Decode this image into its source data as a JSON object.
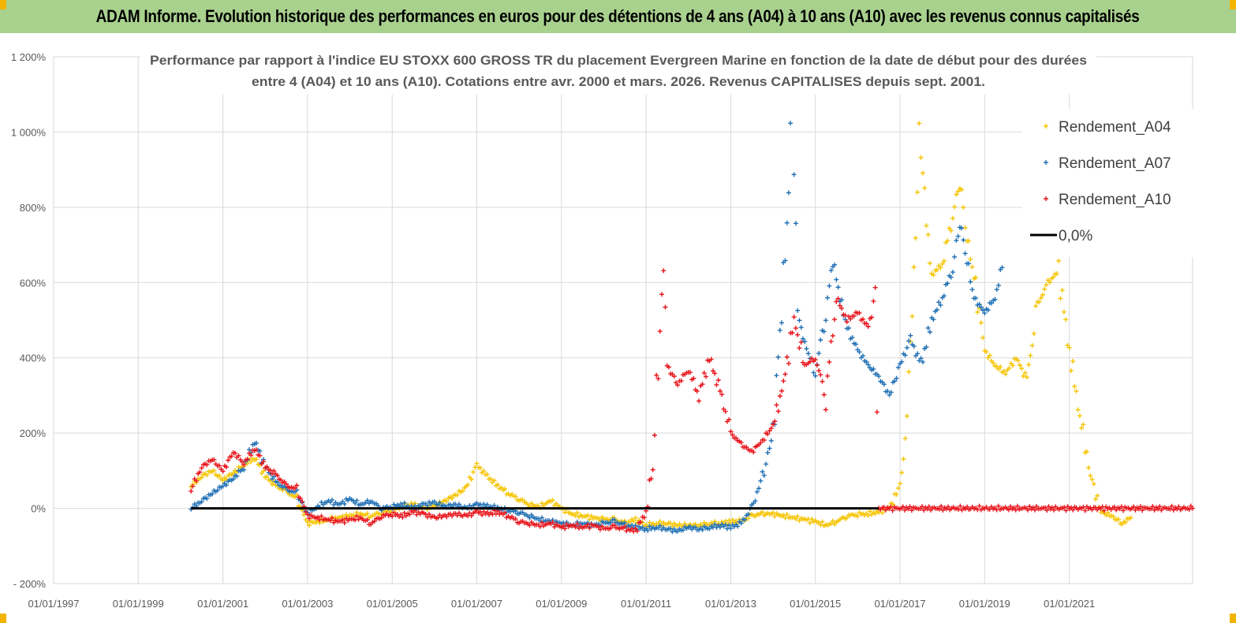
{
  "banner": {
    "title": "ADAM Informe. Evolution historique des performances en euros pour des détentions de 4 ans (A04) à 10 ans (A10) avec les revenus connus capitalisés"
  },
  "colors": {
    "banner_bg": "#a9d18e",
    "A04": "#f5c400",
    "A07": "#1f6fb4",
    "A10": "#e8131a",
    "zero": "#000000",
    "grid": "#d9d9d9"
  },
  "chart_data": {
    "type": "scatter",
    "title_line1": "Performance par rapport à l'indice EU STOXX 600 GROSS TR  du placement Evergreen Marine  en fonction de la date de début pour des durées",
    "title_line2": "entre 4 (A04) et 10 ans (A10). Cotations entre avr. 2000 et mars. 2026. Revenus CAPITALISES depuis sept. 2001.",
    "xlabel": "",
    "ylabel": "",
    "x_range": [
      "1997-01-01",
      "2023-12-01"
    ],
    "x_ticks": [
      "01/01/1997",
      "01/01/1999",
      "01/01/2001",
      "01/01/2003",
      "01/01/2005",
      "01/01/2007",
      "01/01/2009",
      "01/01/2011",
      "01/01/2013",
      "01/01/2015",
      "01/01/2017",
      "01/01/2019",
      "01/01/2021"
    ],
    "y_ticks": [
      -200,
      0,
      200,
      400,
      600,
      800,
      1000,
      1200
    ],
    "y_tick_labels": [
      "- 200%",
      "0%",
      "200%",
      "400%",
      "600%",
      "800%",
      "1 000%",
      "1 200%"
    ],
    "ylim": [
      -200,
      1200
    ],
    "grid": true,
    "legend_position": "top-right",
    "series": [
      {
        "name": "Rendement_A04",
        "key": "A04",
        "marker": "+",
        "points": [
          [
            "2000-04-01",
            60
          ],
          [
            "2000-07-01",
            85
          ],
          [
            "2000-10-01",
            100
          ],
          [
            "2001-01-01",
            75
          ],
          [
            "2001-04-01",
            95
          ],
          [
            "2001-07-01",
            115
          ],
          [
            "2001-10-01",
            135
          ],
          [
            "2002-01-01",
            85
          ],
          [
            "2002-04-01",
            60
          ],
          [
            "2002-07-01",
            45
          ],
          [
            "2002-10-01",
            25
          ],
          [
            "2003-01-01",
            -40
          ],
          [
            "2003-04-01",
            -35
          ],
          [
            "2003-07-01",
            -30
          ],
          [
            "2003-10-01",
            -25
          ],
          [
            "2004-01-01",
            -20
          ],
          [
            "2004-04-01",
            -15
          ],
          [
            "2004-07-01",
            -20
          ],
          [
            "2004-10-01",
            -10
          ],
          [
            "2005-01-01",
            -5
          ],
          [
            "2005-04-01",
            5
          ],
          [
            "2005-07-01",
            10
          ],
          [
            "2005-10-01",
            0
          ],
          [
            "2006-01-01",
            5
          ],
          [
            "2006-04-01",
            20
          ],
          [
            "2006-07-01",
            35
          ],
          [
            "2006-10-01",
            55
          ],
          [
            "2007-01-01",
            115
          ],
          [
            "2007-04-01",
            85
          ],
          [
            "2007-07-01",
            60
          ],
          [
            "2007-10-01",
            40
          ],
          [
            "2008-01-01",
            25
          ],
          [
            "2008-04-01",
            10
          ],
          [
            "2008-07-01",
            5
          ],
          [
            "2008-10-01",
            20
          ],
          [
            "2009-01-01",
            0
          ],
          [
            "2009-04-01",
            -15
          ],
          [
            "2009-07-01",
            -20
          ],
          [
            "2009-10-01",
            -25
          ],
          [
            "2010-01-01",
            -30
          ],
          [
            "2010-04-01",
            -30
          ],
          [
            "2010-07-01",
            -40
          ],
          [
            "2010-10-01",
            -30
          ],
          [
            "2011-01-01",
            -45
          ],
          [
            "2011-04-01",
            -40
          ],
          [
            "2011-07-01",
            -40
          ],
          [
            "2011-10-01",
            -45
          ],
          [
            "2012-01-01",
            -45
          ],
          [
            "2012-04-01",
            -45
          ],
          [
            "2012-07-01",
            -40
          ],
          [
            "2012-10-01",
            -40
          ],
          [
            "2013-01-01",
            -35
          ],
          [
            "2013-04-01",
            -35
          ],
          [
            "2013-07-01",
            -20
          ],
          [
            "2013-10-01",
            -15
          ],
          [
            "2014-01-01",
            -15
          ],
          [
            "2014-04-01",
            -20
          ],
          [
            "2014-07-01",
            -25
          ],
          [
            "2014-10-01",
            -30
          ],
          [
            "2015-01-01",
            -35
          ],
          [
            "2015-04-01",
            -45
          ],
          [
            "2015-07-01",
            -35
          ],
          [
            "2015-10-01",
            -20
          ],
          [
            "2016-01-01",
            -15
          ],
          [
            "2016-04-01",
            -15
          ],
          [
            "2016-07-01",
            -10
          ],
          [
            "2016-10-01",
            0
          ],
          [
            "2017-01-01",
            60
          ],
          [
            "2017-02-15",
            180
          ],
          [
            "2017-04-01",
            440
          ],
          [
            "2017-05-15",
            700
          ],
          [
            "2017-06-15",
            1000
          ],
          [
            "2017-08-01",
            820
          ],
          [
            "2017-10-01",
            620
          ],
          [
            "2018-01-01",
            650
          ],
          [
            "2018-04-01",
            780
          ],
          [
            "2018-06-01",
            870
          ],
          [
            "2018-08-01",
            720
          ],
          [
            "2018-10-01",
            620
          ],
          [
            "2019-01-01",
            420
          ],
          [
            "2019-04-01",
            380
          ],
          [
            "2019-07-01",
            360
          ],
          [
            "2019-10-01",
            400
          ],
          [
            "2020-01-01",
            340
          ],
          [
            "2020-04-01",
            540
          ],
          [
            "2020-07-01",
            600
          ],
          [
            "2020-10-01",
            630
          ],
          [
            "2021-01-01",
            420
          ],
          [
            "2021-04-01",
            250
          ],
          [
            "2021-07-01",
            90
          ],
          [
            "2021-10-01",
            -10
          ],
          [
            "2022-01-01",
            -20
          ],
          [
            "2022-04-01",
            -40
          ],
          [
            "2022-06-15",
            -25
          ]
        ]
      },
      {
        "name": "Rendement_A07",
        "key": "A07",
        "marker": "+",
        "points": [
          [
            "2000-04-01",
            0
          ],
          [
            "2000-07-01",
            20
          ],
          [
            "2000-10-01",
            40
          ],
          [
            "2001-01-01",
            60
          ],
          [
            "2001-04-01",
            80
          ],
          [
            "2001-07-01",
            110
          ],
          [
            "2001-10-01",
            180
          ],
          [
            "2002-01-01",
            110
          ],
          [
            "2002-04-01",
            70
          ],
          [
            "2002-07-01",
            50
          ],
          [
            "2002-10-01",
            40
          ],
          [
            "2003-01-01",
            -15
          ],
          [
            "2003-04-01",
            5
          ],
          [
            "2003-07-01",
            20
          ],
          [
            "2003-10-01",
            10
          ],
          [
            "2004-01-01",
            25
          ],
          [
            "2004-04-01",
            10
          ],
          [
            "2004-07-01",
            20
          ],
          [
            "2004-10-01",
            0
          ],
          [
            "2005-01-01",
            5
          ],
          [
            "2005-04-01",
            10
          ],
          [
            "2005-07-01",
            0
          ],
          [
            "2005-10-01",
            10
          ],
          [
            "2006-01-01",
            15
          ],
          [
            "2006-04-01",
            5
          ],
          [
            "2006-07-01",
            10
          ],
          [
            "2006-10-01",
            0
          ],
          [
            "2007-01-01",
            10
          ],
          [
            "2007-04-01",
            5
          ],
          [
            "2007-07-01",
            0
          ],
          [
            "2007-10-01",
            -5
          ],
          [
            "2008-01-01",
            -10
          ],
          [
            "2008-04-01",
            -20
          ],
          [
            "2008-07-01",
            -30
          ],
          [
            "2008-10-01",
            -35
          ],
          [
            "2009-01-01",
            -40
          ],
          [
            "2009-04-01",
            -45
          ],
          [
            "2009-07-01",
            -40
          ],
          [
            "2009-10-01",
            -45
          ],
          [
            "2010-01-01",
            -40
          ],
          [
            "2010-04-01",
            -35
          ],
          [
            "2010-07-01",
            -45
          ],
          [
            "2010-10-01",
            -50
          ],
          [
            "2011-01-01",
            -55
          ],
          [
            "2011-04-01",
            -50
          ],
          [
            "2011-07-01",
            -55
          ],
          [
            "2011-10-01",
            -60
          ],
          [
            "2012-01-01",
            -50
          ],
          [
            "2012-04-01",
            -55
          ],
          [
            "2012-07-01",
            -50
          ],
          [
            "2012-10-01",
            -45
          ],
          [
            "2013-01-01",
            -50
          ],
          [
            "2013-04-01",
            -40
          ],
          [
            "2013-07-01",
            0
          ],
          [
            "2013-10-01",
            80
          ],
          [
            "2014-01-01",
            200
          ],
          [
            "2014-03-01",
            460
          ],
          [
            "2014-05-01",
            750
          ],
          [
            "2014-06-15",
            1080
          ],
          [
            "2014-08-01",
            520
          ],
          [
            "2014-10-01",
            440
          ],
          [
            "2015-01-01",
            360
          ],
          [
            "2015-04-01",
            520
          ],
          [
            "2015-06-01",
            660
          ],
          [
            "2015-08-01",
            560
          ],
          [
            "2015-10-01",
            480
          ],
          [
            "2016-01-01",
            420
          ],
          [
            "2016-04-01",
            380
          ],
          [
            "2016-07-01",
            350
          ],
          [
            "2016-10-01",
            300
          ],
          [
            "2017-01-01",
            380
          ],
          [
            "2017-04-01",
            450
          ],
          [
            "2017-07-01",
            380
          ],
          [
            "2017-10-01",
            500
          ],
          [
            "2018-01-01",
            560
          ],
          [
            "2018-04-01",
            640
          ],
          [
            "2018-06-01",
            760
          ],
          [
            "2018-08-01",
            660
          ],
          [
            "2018-10-01",
            560
          ],
          [
            "2019-01-01",
            520
          ],
          [
            "2019-04-01",
            560
          ],
          [
            "2019-06-01",
            640
          ]
        ]
      },
      {
        "name": "Rendement_A10",
        "key": "A10",
        "marker": "+",
        "points": [
          [
            "2000-04-01",
            50
          ],
          [
            "2000-07-01",
            110
          ],
          [
            "2000-10-01",
            130
          ],
          [
            "2001-01-01",
            100
          ],
          [
            "2001-04-01",
            150
          ],
          [
            "2001-07-01",
            120
          ],
          [
            "2001-10-01",
            160
          ],
          [
            "2002-01-01",
            110
          ],
          [
            "2002-04-01",
            90
          ],
          [
            "2002-07-01",
            60
          ],
          [
            "2002-10-01",
            50
          ],
          [
            "2003-01-01",
            -20
          ],
          [
            "2003-04-01",
            -25
          ],
          [
            "2003-07-01",
            -30
          ],
          [
            "2003-10-01",
            -35
          ],
          [
            "2004-01-01",
            -30
          ],
          [
            "2004-04-01",
            -25
          ],
          [
            "2004-07-01",
            -40
          ],
          [
            "2004-10-01",
            -20
          ],
          [
            "2005-01-01",
            -15
          ],
          [
            "2005-04-01",
            -20
          ],
          [
            "2005-07-01",
            -10
          ],
          [
            "2005-10-01",
            -15
          ],
          [
            "2006-01-01",
            -25
          ],
          [
            "2006-04-01",
            -20
          ],
          [
            "2006-07-01",
            -15
          ],
          [
            "2006-10-01",
            -20
          ],
          [
            "2007-01-01",
            -10
          ],
          [
            "2007-04-01",
            -15
          ],
          [
            "2007-07-01",
            -10
          ],
          [
            "2007-10-01",
            -20
          ],
          [
            "2008-01-01",
            -35
          ],
          [
            "2008-04-01",
            -40
          ],
          [
            "2008-07-01",
            -45
          ],
          [
            "2008-10-01",
            -40
          ],
          [
            "2009-01-01",
            -50
          ],
          [
            "2009-04-01",
            -45
          ],
          [
            "2009-07-01",
            -50
          ],
          [
            "2009-10-01",
            -45
          ],
          [
            "2010-01-01",
            -55
          ],
          [
            "2010-04-01",
            -50
          ],
          [
            "2010-07-01",
            -55
          ],
          [
            "2010-10-01",
            -60
          ],
          [
            "2011-01-01",
            -10
          ],
          [
            "2011-03-01",
            120
          ],
          [
            "2011-05-01",
            480
          ],
          [
            "2011-06-01",
            640
          ],
          [
            "2011-07-01",
            380
          ],
          [
            "2011-10-01",
            330
          ],
          [
            "2012-01-01",
            370
          ],
          [
            "2012-04-01",
            300
          ],
          [
            "2012-07-01",
            400
          ],
          [
            "2012-10-01",
            310
          ],
          [
            "2013-01-01",
            200
          ],
          [
            "2013-04-01",
            170
          ],
          [
            "2013-07-01",
            150
          ],
          [
            "2013-10-01",
            180
          ],
          [
            "2014-01-01",
            220
          ],
          [
            "2014-04-01",
            330
          ],
          [
            "2014-07-01",
            500
          ],
          [
            "2014-10-01",
            380
          ],
          [
            "2015-01-01",
            400
          ],
          [
            "2015-04-01",
            300
          ],
          [
            "2015-07-01",
            560
          ],
          [
            "2015-10-01",
            500
          ],
          [
            "2016-01-01",
            520
          ],
          [
            "2016-04-01",
            480
          ],
          [
            "2016-06-01",
            560
          ],
          [
            "2016-07-01",
            0
          ],
          [
            "2023-12-01",
            0
          ]
        ]
      }
    ],
    "zero_line": {
      "name": "0,0%",
      "key": "zero",
      "x": [
        "2000-04-01",
        "2016-07-01"
      ],
      "y": 0
    }
  }
}
